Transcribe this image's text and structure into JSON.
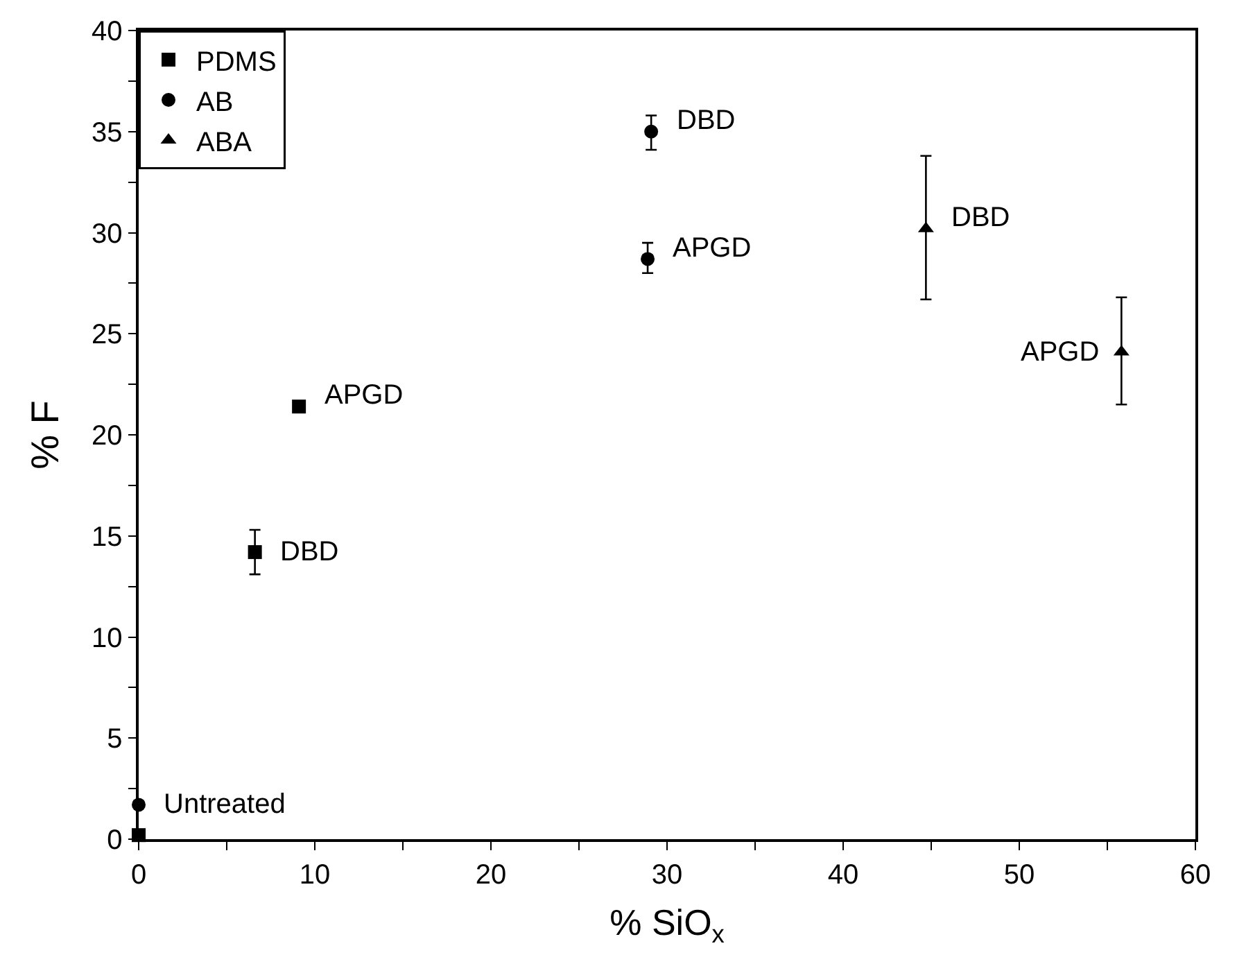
{
  "chart_data": {
    "type": "scatter",
    "xlabel": "% SiO$_{x}$",
    "ylabel": "% F",
    "xlim": [
      0,
      60
    ],
    "ylim": [
      0,
      40
    ],
    "xticks": [
      0,
      {
        "value": 5,
        "label": null
      },
      10,
      {
        "value": 15,
        "label": null
      },
      20,
      {
        "value": 25,
        "label": null
      },
      30,
      {
        "value": 35,
        "label": null
      },
      40,
      {
        "value": 45,
        "label": null
      },
      50,
      {
        "value": 55,
        "label": null
      },
      60
    ],
    "yticks": [
      0,
      {
        "value": 2.5,
        "label": null
      },
      5,
      {
        "value": 7.5,
        "label": null
      },
      10,
      {
        "value": 12.5,
        "label": null
      },
      15,
      {
        "value": 17.5,
        "label": null
      },
      20,
      {
        "value": 22.5,
        "label": null
      },
      25,
      {
        "value": 27.5,
        "label": null
      },
      30,
      {
        "value": 32.5,
        "label": null
      },
      35,
      {
        "value": 37.5,
        "label": null
      },
      40
    ],
    "legend": "top left",
    "series": [
      {
        "name": "PDMS",
        "color": "#000000",
        "marker": "square",
        "x": [
          0,
          6.6,
          9.1
        ],
        "values": [
          0.2,
          14.2,
          21.4
        ],
        "errors": [
          null,
          [
            13.1,
            15.3
          ],
          null
        ]
      },
      {
        "name": "AB",
        "color": "#000000",
        "marker": "circle",
        "x": [
          0,
          29.1,
          28.9
        ],
        "values": [
          1.7,
          35.0,
          28.7
        ],
        "errors": [
          null,
          [
            34.1,
            35.8
          ],
          [
            28.0,
            29.5
          ]
        ]
      },
      {
        "name": "ABA",
        "color": "#000000",
        "marker": "triangle",
        "x": [
          44.7,
          55.8
        ],
        "values": [
          30.2,
          24.1
        ],
        "errors": [
          [
            26.7,
            33.8
          ],
          [
            21.5,
            26.8
          ]
        ]
      }
    ],
    "annotations": [
      {
        "text": "Untreated",
        "x": 0,
        "y": 1.7
      },
      {
        "text": "DBD",
        "x": 6.6,
        "y": 14.2
      },
      {
        "text": "APGD",
        "x": 9.1,
        "y": 21.4
      },
      {
        "text": "DBD",
        "x": 29.1,
        "y": 35.0
      },
      {
        "text": "APGD",
        "x": 28.9,
        "y": 28.7
      },
      {
        "text": "DBD",
        "x": 44.7,
        "y": 30.2
      },
      {
        "text": "APGD",
        "x": 55.8,
        "y": 24.1
      }
    ]
  }
}
